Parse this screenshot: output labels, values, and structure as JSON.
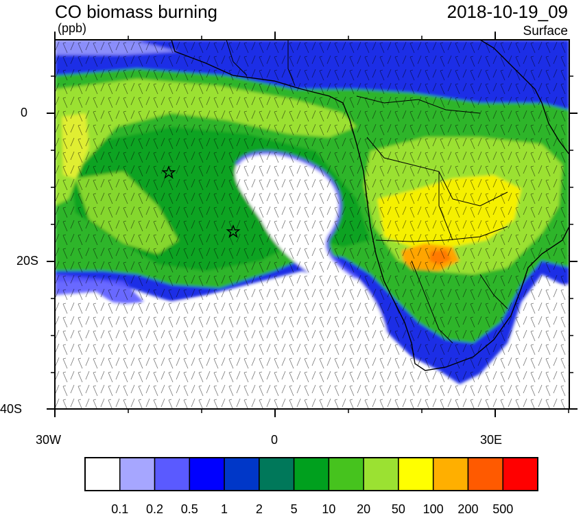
{
  "title": "CO biomass burning",
  "datetime": "2018-10-19_09",
  "units": "(ppb)",
  "level": "Surface",
  "axes": {
    "x_ticks": [
      {
        "label": "30W",
        "lon": -30
      },
      {
        "label": "0",
        "lon": 0
      },
      {
        "label": "30E",
        "lon": 30
      }
    ],
    "y_ticks": [
      {
        "label": "0",
        "lat": 0
      },
      {
        "label": "20S",
        "lat": -20
      },
      {
        "label": "40S",
        "lat": -40
      }
    ],
    "lon_range": [
      -30,
      40
    ],
    "lat_range": [
      -40,
      10
    ]
  },
  "colorbar": {
    "labels": [
      "0.1",
      "0.2",
      "0.5",
      "1",
      "2",
      "5",
      "10",
      "20",
      "50",
      "100",
      "200",
      "500"
    ],
    "colors": [
      "#ffffff",
      "#a6a6ff",
      "#5a5aff",
      "#0000ff",
      "#0037c8",
      "#00785a",
      "#00a01e",
      "#46c31e",
      "#9be132",
      "#ffff00",
      "#ffaf00",
      "#ff5a00",
      "#ff0000"
    ]
  },
  "markers": [
    {
      "name": "star",
      "lon": -14.5,
      "lat": -8
    },
    {
      "name": "star",
      "lon": -5.5,
      "lat": -16
    }
  ]
}
